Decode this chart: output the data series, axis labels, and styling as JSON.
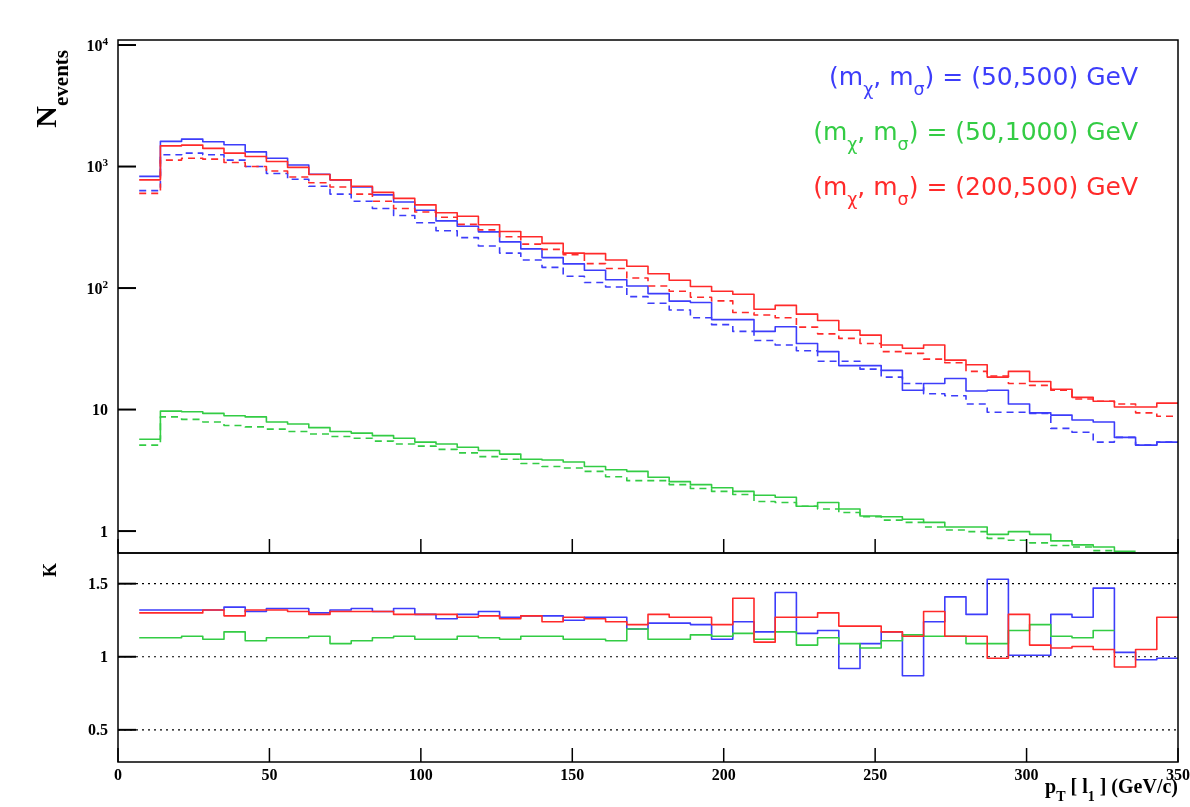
{
  "chart_data": [
    {
      "type": "step",
      "ylabel": "N$_{events}$",
      "log": true,
      "legend": "top right",
      "tick_labels": "y",
      "x": [
        7,
        14,
        21,
        28,
        35,
        42,
        49,
        56,
        63,
        70,
        77,
        84,
        91,
        98,
        105,
        112,
        119,
        126,
        133,
        140,
        147,
        154,
        161,
        168,
        175,
        182,
        189,
        196,
        203,
        210,
        217,
        224,
        231,
        238,
        245,
        252,
        259,
        266,
        273,
        280,
        287,
        294,
        301,
        308,
        315,
        322,
        329,
        336,
        343,
        350
      ],
      "xlim": [
        0,
        350
      ],
      "xticks": [
        0,
        50,
        100,
        150,
        200,
        250,
        300,
        350
      ],
      "ylim": [
        0.66,
        11000
      ],
      "yticks": [
        1,
        10,
        {
          "value": 100,
          "label": "10$^{2}$"
        },
        {
          "value": 1000,
          "label": "10$^{3}$"
        },
        {
          "value": 10000,
          "label": "10$^{4}$"
        }
      ],
      "series": [
        {
          "name": "(m$_{χ}$, m$_{σ}$) = (50,500) GeV",
          "color": "#3d3dfa",
          "values": [
            830,
            1610,
            1680,
            1600,
            1510,
            1320,
            1170,
            1030,
            865,
            777,
            679,
            585,
            511,
            437,
            357,
            323,
            290,
            240,
            210,
            178,
            158,
            140,
            117,
            104,
            90,
            78,
            76,
            55,
            55,
            44,
            48,
            35,
            30,
            23,
            23,
            21,
            14.4,
            16.4,
            18,
            14.2,
            14.4,
            11.1,
            9.4,
            9.0,
            8.2,
            7.9,
            5.9,
            5.1,
            5.4,
            5.4
          ]
        },
        {
          "color": "#3d3dfa",
          "line_style": "dashed",
          "values": [
            634,
            1250,
            1290,
            1250,
            1130,
            1000,
            877,
            787,
            688,
            593,
            518,
            452,
            395,
            345,
            296,
            260,
            222,
            194,
            170,
            148,
            125,
            111,
            102,
            85,
            75,
            66,
            57,
            50,
            44,
            37,
            34,
            30.5,
            25,
            25,
            21.5,
            18.5,
            16.4,
            13.5,
            13,
            11.1,
            9.5,
            9.5,
            9.3,
            7.0,
            6.5,
            5.4,
            5.9,
            5.1,
            5.4,
            5.4
          ]
        },
        {
          "name": "(m$_{χ}$, m$_{σ}$) = (50,1000) GeV",
          "color": "#33cc44",
          "values": [
            5.7,
            9.7,
            9.6,
            9.3,
            8.9,
            8.7,
            7.9,
            7.6,
            7.1,
            6.6,
            6.4,
            6.1,
            5.8,
            5.4,
            5.2,
            4.9,
            4.6,
            4.3,
            3.9,
            3.85,
            3.7,
            3.4,
            3.2,
            3.1,
            2.77,
            2.55,
            2.41,
            2.27,
            2.12,
            1.97,
            1.9,
            1.6,
            1.72,
            1.52,
            1.33,
            1.31,
            1.25,
            1.18,
            1.08,
            1.08,
            0.94,
            0.99,
            0.94,
            0.83,
            0.77,
            0.74,
            0.68,
            0.68,
            null,
            null
          ]
        },
        {
          "color": "#33cc44",
          "line_style": "dashed",
          "values": [
            5.1,
            8.7,
            8.3,
            7.9,
            7.4,
            7.2,
            6.9,
            6.6,
            6.3,
            6.0,
            5.8,
            5.5,
            5.2,
            5.0,
            4.7,
            4.4,
            4.1,
            3.9,
            3.6,
            3.4,
            3.3,
            3.1,
            2.8,
            2.6,
            2.6,
            2.41,
            2.24,
            2.12,
            2.0,
            1.75,
            1.72,
            1.6,
            1.52,
            1.42,
            1.31,
            1.23,
            1.18,
            1.08,
            1.02,
            0.99,
            0.87,
            0.84,
            0.8,
            0.76,
            0.74,
            0.69,
            0.69,
            null,
            null,
            null
          ]
        },
        {
          "name": "(m$_{χ}$, m$_{σ}$) = (200,500) GeV",
          "color": "#ff2a2a",
          "values": [
            777,
            1480,
            1500,
            1410,
            1290,
            1210,
            1100,
            984,
            860,
            777,
            688,
            613,
            547,
            484,
            417,
            390,
            332,
            292,
            264,
            233,
            194,
            192,
            170,
            151,
            131,
            116,
            103,
            94,
            89,
            67,
            72,
            61,
            54,
            45,
            41,
            34,
            32,
            34,
            25.5,
            23.4,
            18.5,
            20.6,
            17,
            14.7,
            12.6,
            11.7,
            10.5,
            10.5,
            11.3,
            11.3
          ]
        },
        {
          "color": "#ff2a2a",
          "line_style": "dashed",
          "values": [
            601,
            1130,
            1170,
            1150,
            1080,
            1000,
            920,
            820,
            736,
            679,
            593,
            518,
            452,
            423,
            382,
            334,
            301,
            264,
            230,
            208,
            188,
            159,
            145,
            121,
            104,
            94,
            84,
            78.5,
            63,
            60,
            57,
            47.7,
            42,
            38.5,
            35,
            30,
            29,
            26,
            24.3,
            20.6,
            18.9,
            16.4,
            15.8,
            14.4,
            12.2,
            11.7,
            11.1,
            9.4,
            8.8,
            8.8
          ]
        }
      ]
    },
    {
      "type": "step",
      "ylabel": "K",
      "xlabel": "p$_{T}$ [ l$_{1}$ ] (GeV/c)",
      "grid": "y",
      "x": [
        7,
        14,
        21,
        28,
        35,
        42,
        49,
        56,
        63,
        70,
        77,
        84,
        91,
        98,
        105,
        112,
        119,
        126,
        133,
        140,
        147,
        154,
        161,
        168,
        175,
        182,
        189,
        196,
        203,
        210,
        217,
        224,
        231,
        238,
        245,
        252,
        259,
        266,
        273,
        280,
        287,
        294,
        301,
        308,
        315,
        322,
        329,
        336,
        343,
        350
      ],
      "xlim": [
        0,
        350
      ],
      "xticks": [
        0,
        50,
        100,
        150,
        200,
        250,
        300,
        350
      ],
      "ylim": [
        0.28,
        1.71
      ],
      "yticks": [
        0.5,
        1,
        1.5
      ],
      "series": [
        {
          "color": "#3d3dfa",
          "values": [
            1.32,
            1.32,
            1.32,
            1.32,
            1.34,
            1.31,
            1.33,
            1.33,
            1.3,
            1.32,
            1.33,
            1.31,
            1.33,
            1.29,
            1.26,
            1.29,
            1.31,
            1.27,
            1.28,
            1.28,
            1.25,
            1.27,
            1.27,
            1.19,
            1.23,
            1.23,
            1.22,
            1.12,
            1.24,
            1.17,
            1.44,
            1.16,
            1.18,
            0.92,
            1.09,
            1.17,
            0.87,
            1.24,
            1.41,
            1.29,
            1.53,
            1.01,
            1.01,
            1.29,
            1.27,
            1.47,
            1.03,
            0.98,
            0.99,
            0.99
          ]
        },
        {
          "color": "#33cc44",
          "values": [
            1.13,
            1.13,
            1.14,
            1.12,
            1.17,
            1.11,
            1.13,
            1.13,
            1.14,
            1.09,
            1.11,
            1.13,
            1.14,
            1.12,
            1.12,
            1.14,
            1.13,
            1.12,
            1.14,
            1.14,
            1.12,
            1.12,
            1.11,
            1.19,
            1.12,
            1.12,
            1.15,
            1.14,
            1.16,
            1.12,
            1.17,
            1.08,
            1.13,
            1.09,
            1.06,
            1.11,
            1.15,
            1.14,
            1.14,
            1.09,
            1.09,
            1.18,
            1.22,
            1.14,
            1.13,
            1.18,
            1.18,
            null,
            null,
            null
          ]
        },
        {
          "color": "#ff2a2a",
          "values": [
            1.3,
            1.3,
            1.3,
            1.32,
            1.28,
            1.32,
            1.32,
            1.31,
            1.29,
            1.31,
            1.31,
            1.31,
            1.29,
            1.29,
            1.29,
            1.27,
            1.28,
            1.26,
            1.28,
            1.24,
            1.27,
            1.26,
            1.24,
            1.22,
            1.29,
            1.27,
            1.27,
            1.22,
            1.4,
            1.1,
            1.27,
            1.27,
            1.3,
            1.21,
            1.21,
            1.17,
            1.14,
            1.31,
            1.14,
            1.14,
            0.99,
            1.29,
            1.08,
            1.06,
            1.07,
            1.05,
            0.93,
            1.05,
            1.27,
            1.27
          ]
        }
      ]
    }
  ]
}
